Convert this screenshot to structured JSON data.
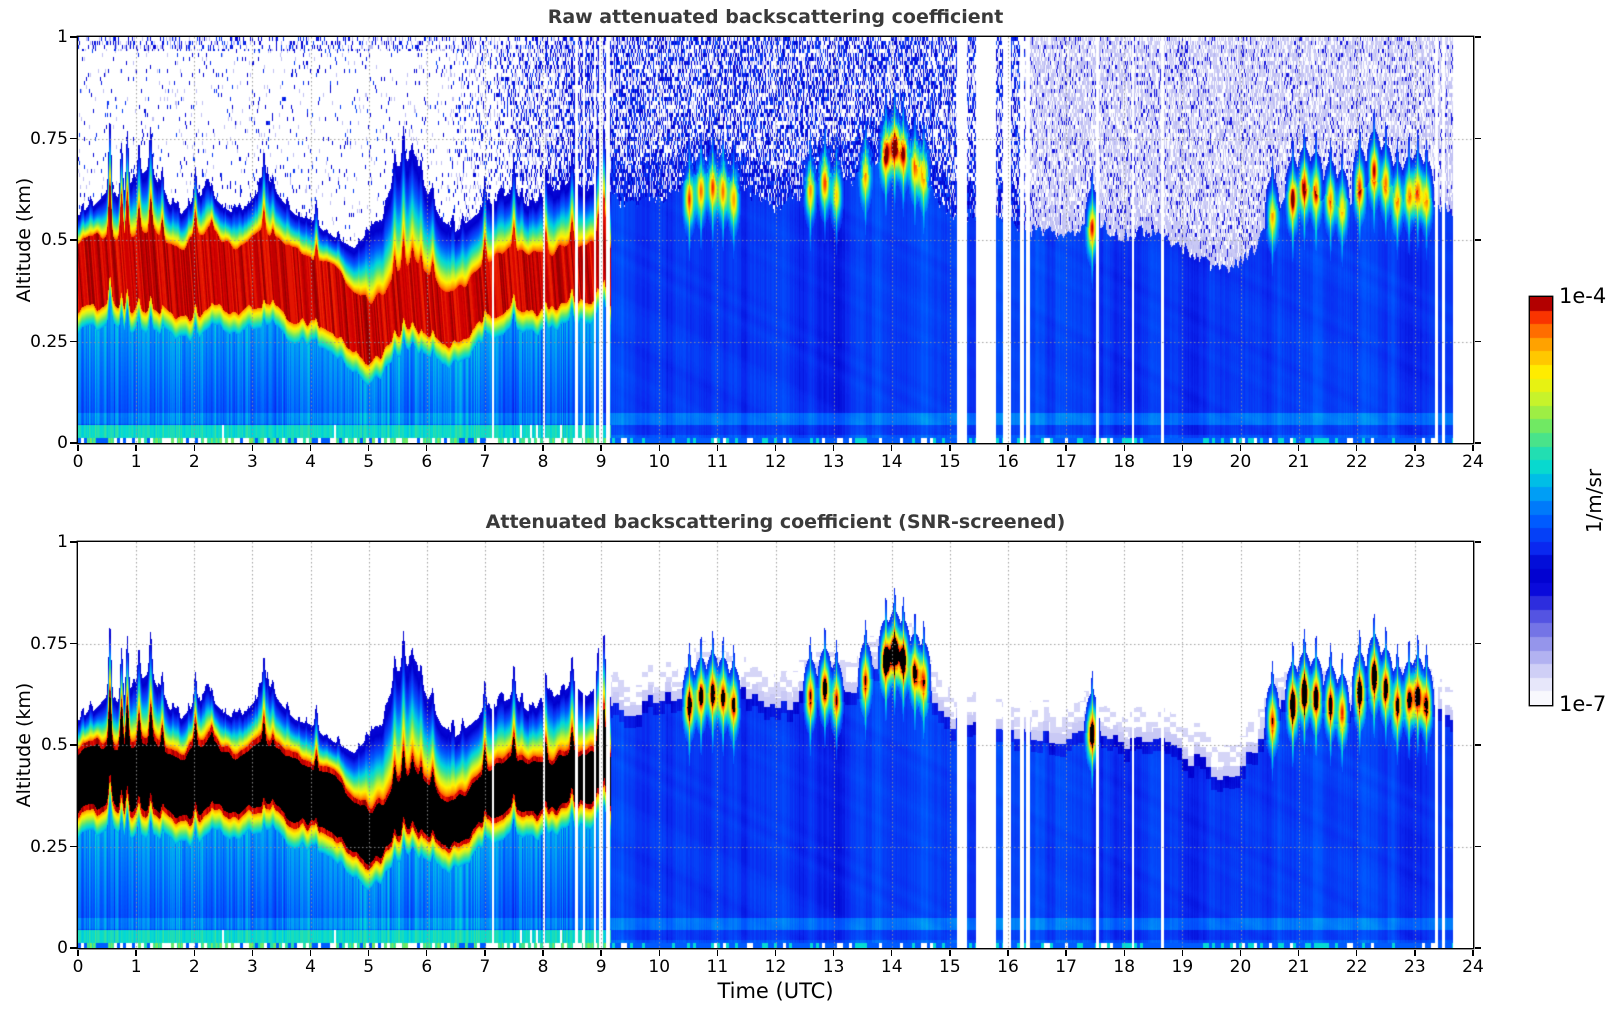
{
  "chart_data": {
    "type": "heatmap",
    "panels": [
      {
        "id": "raw",
        "title": "Raw attenuated backscattering coefficient",
        "screened": false
      },
      {
        "id": "screened",
        "title": "Attenuated backscattering coefficient (SNR-screened)",
        "screened": true
      }
    ],
    "xlabel": "Time (UTC)",
    "ylabel": "Altitude (km)",
    "xlim": [
      0,
      24
    ],
    "ylim": [
      0,
      1
    ],
    "xtick_labels": [
      "0",
      "1",
      "2",
      "3",
      "4",
      "5",
      "6",
      "7",
      "8",
      "9",
      "10",
      "11",
      "12",
      "13",
      "14",
      "15",
      "16",
      "17",
      "18",
      "19",
      "20",
      "21",
      "22",
      "23",
      "24"
    ],
    "yticks": [
      {
        "v": 0,
        "label": "0"
      },
      {
        "v": 0.25,
        "label": "0.25"
      },
      {
        "v": 0.5,
        "label": "0.5"
      },
      {
        "v": 0.75,
        "label": "0.75"
      },
      {
        "v": 1,
        "label": "1"
      }
    ],
    "grid": "dotted, hourly vertical and 0.25-km horizontal",
    "colorbar": {
      "max_label": "1e-4",
      "min_label": "1e-7",
      "unit": "1/m/sr",
      "scale": "log",
      "steps": 30
    },
    "colormap": [
      [
        0.0,
        "#ffffff"
      ],
      [
        0.05,
        "#e8e8fa"
      ],
      [
        0.11,
        "#b9b9f2"
      ],
      [
        0.17,
        "#8282e8"
      ],
      [
        0.23,
        "#4646e0"
      ],
      [
        0.28,
        "#0a0adc"
      ],
      [
        0.33,
        "#0000cd"
      ],
      [
        0.385,
        "#0a28f0"
      ],
      [
        0.45,
        "#005aff"
      ],
      [
        0.52,
        "#00a0f5"
      ],
      [
        0.575,
        "#00d8d8"
      ],
      [
        0.63,
        "#2ee0a4"
      ],
      [
        0.69,
        "#7aea5a"
      ],
      [
        0.75,
        "#c8f32a"
      ],
      [
        0.81,
        "#fff200"
      ],
      [
        0.855,
        "#ffc400"
      ],
      [
        0.9,
        "#ff8c00"
      ],
      [
        0.945,
        "#ff3c00"
      ],
      [
        0.975,
        "#d40000"
      ],
      [
        1.0,
        "#7a0000"
      ]
    ],
    "heatmap_profile": {
      "time_step_h": 0.25,
      "era_split_h": 9.17,
      "data_end_h": 23.65,
      "layer_top_km": [
        0.56,
        0.58,
        0.62,
        0.6,
        0.65,
        0.68,
        0.6,
        0.56,
        0.6,
        0.62,
        0.58,
        0.56,
        0.6,
        0.65,
        0.6,
        0.56,
        0.55,
        0.52,
        0.5,
        0.48,
        0.52,
        0.55,
        0.68,
        0.7,
        0.62,
        0.55,
        0.52,
        0.55,
        0.58,
        0.6,
        0.62,
        0.58,
        0.6,
        0.62,
        0.65,
        0.62,
        0.65,
        0.6,
        0.58,
        0.6,
        0.6,
        0.62,
        0.64,
        0.66,
        0.65,
        0.64,
        0.62,
        0.6,
        0.58,
        0.6,
        0.62,
        0.65,
        0.66,
        0.64,
        0.66,
        0.7,
        0.74,
        0.72,
        0.68,
        0.6,
        0.56,
        0.55,
        0.55,
        0.55,
        0.54,
        0.53,
        0.52,
        0.52,
        0.51,
        0.52,
        0.56,
        0.52,
        0.51,
        0.52,
        0.52,
        0.5,
        0.48,
        0.46,
        0.44,
        0.43,
        0.45,
        0.48,
        0.55,
        0.6,
        0.64,
        0.62,
        0.6,
        0.58,
        0.62,
        0.66,
        0.64,
        0.6,
        0.62,
        0.6,
        0.58,
        0.56,
        0.55
      ],
      "core_top_km": [
        0.5,
        0.5,
        0.52,
        0.5,
        0.52,
        0.52,
        0.5,
        0.48,
        0.5,
        0.52,
        0.5,
        0.48,
        0.5,
        0.52,
        0.5,
        0.47,
        0.46,
        0.44,
        0.42,
        0.38,
        0.35,
        0.37,
        0.42,
        0.45,
        0.42,
        0.38,
        0.38,
        0.4,
        0.44,
        0.46,
        0.48,
        0.46,
        0.46,
        0.48,
        0.5,
        0.48,
        0.5,
        0.48
      ],
      "core_bottom_km": [
        0.33,
        0.33,
        0.35,
        0.33,
        0.32,
        0.33,
        0.32,
        0.3,
        0.31,
        0.33,
        0.33,
        0.32,
        0.33,
        0.34,
        0.32,
        0.3,
        0.3,
        0.28,
        0.26,
        0.22,
        0.2,
        0.22,
        0.26,
        0.28,
        0.26,
        0.24,
        0.25,
        0.27,
        0.3,
        0.32,
        0.33,
        0.32,
        0.32,
        0.33,
        0.35,
        0.34,
        0.35,
        0.34
      ],
      "spikes": [
        [
          0.55,
          0.8
        ],
        [
          0.75,
          0.74
        ],
        [
          0.85,
          0.77
        ],
        [
          1.05,
          0.74
        ],
        [
          1.25,
          0.78
        ],
        [
          1.45,
          0.68
        ],
        [
          2.02,
          0.68
        ],
        [
          2.3,
          0.64
        ],
        [
          3.2,
          0.72
        ],
        [
          3.35,
          0.66
        ],
        [
          4.1,
          0.6
        ],
        [
          5.45,
          0.72
        ],
        [
          5.6,
          0.78
        ],
        [
          5.75,
          0.74
        ],
        [
          5.9,
          0.7
        ],
        [
          6.1,
          0.64
        ],
        [
          7.0,
          0.66
        ],
        [
          7.5,
          0.7
        ],
        [
          8.05,
          0.68
        ],
        [
          8.5,
          0.72
        ],
        [
          8.95,
          0.74
        ],
        [
          9.05,
          0.78
        ]
      ],
      "clouds": [
        [
          10.52,
          0.6,
          0.55
        ],
        [
          10.72,
          0.62,
          0.52
        ],
        [
          10.92,
          0.63,
          0.55
        ],
        [
          11.1,
          0.62,
          0.52
        ],
        [
          11.28,
          0.6,
          0.48
        ],
        [
          12.6,
          0.62,
          0.48
        ],
        [
          12.85,
          0.64,
          0.58
        ],
        [
          13.05,
          0.61,
          0.48
        ],
        [
          13.55,
          0.66,
          0.48
        ],
        [
          13.9,
          0.71,
          0.66
        ],
        [
          14.05,
          0.73,
          0.7
        ],
        [
          14.2,
          0.71,
          0.62
        ],
        [
          14.4,
          0.68,
          0.52
        ],
        [
          14.55,
          0.66,
          0.48
        ],
        [
          17.45,
          0.53,
          0.58
        ],
        [
          20.55,
          0.56,
          0.48
        ],
        [
          20.9,
          0.6,
          0.66
        ],
        [
          21.1,
          0.63,
          0.66
        ],
        [
          21.3,
          0.62,
          0.58
        ],
        [
          21.55,
          0.6,
          0.55
        ],
        [
          21.75,
          0.58,
          0.48
        ],
        [
          22.05,
          0.63,
          0.62
        ],
        [
          22.3,
          0.67,
          0.66
        ],
        [
          22.5,
          0.64,
          0.58
        ],
        [
          22.7,
          0.6,
          0.52
        ],
        [
          22.9,
          0.61,
          0.55
        ],
        [
          23.05,
          0.62,
          0.58
        ],
        [
          23.2,
          0.6,
          0.52
        ]
      ],
      "gaps_h": [
        [
          7.13,
          7.16
        ],
        [
          8.0,
          8.03
        ],
        [
          8.55,
          8.6
        ],
        [
          8.68,
          8.72
        ],
        [
          8.88,
          8.92
        ],
        [
          8.97,
          9.03
        ],
        [
          9.08,
          9.15
        ],
        [
          15.12,
          15.3
        ],
        [
          15.45,
          15.8
        ],
        [
          15.92,
          16.05
        ],
        [
          16.2,
          16.27
        ],
        [
          16.31,
          16.38
        ],
        [
          17.52,
          17.56
        ],
        [
          18.13,
          18.17
        ],
        [
          18.64,
          18.68
        ],
        [
          23.35,
          23.4
        ],
        [
          23.47,
          23.52
        ],
        [
          23.65,
          24.01
        ]
      ],
      "noise": {
        "ramp_start_h": 6.2,
        "era_b_density": 0.44,
        "pale_after_h": 16.3
      }
    }
  }
}
